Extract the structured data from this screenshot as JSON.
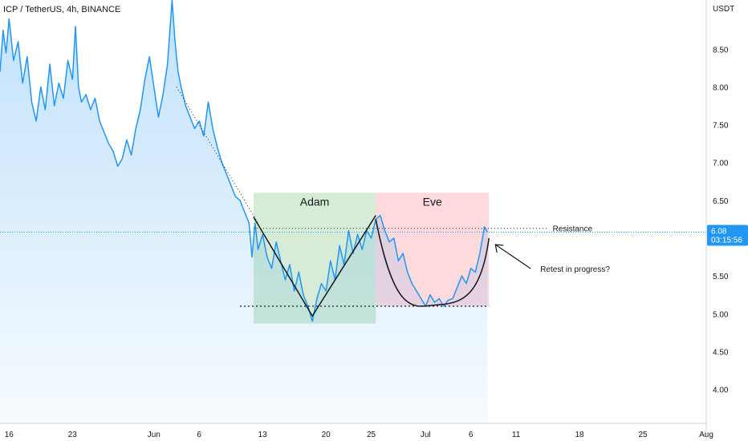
{
  "chart_data": {
    "type": "line",
    "title": "ICP / TetherUS, 4h, BINANCE",
    "y_unit": "USDT",
    "y_range": [
      3.55,
      9.15
    ],
    "y_ticks": [
      4.0,
      4.5,
      5.0,
      5.5,
      6.0,
      6.5,
      7.0,
      7.5,
      8.0,
      8.5
    ],
    "x_range_days": [
      "2021-05-15",
      "2021-08-01"
    ],
    "x_ticks": [
      {
        "date": "2021-05-16",
        "label": "16"
      },
      {
        "date": "2021-05-23",
        "label": "23"
      },
      {
        "date": "2021-06-01",
        "label": "Jun"
      },
      {
        "date": "2021-06-06",
        "label": "6"
      },
      {
        "date": "2021-06-13",
        "label": "13"
      },
      {
        "date": "2021-06-20",
        "label": "20"
      },
      {
        "date": "2021-06-25",
        "label": "25"
      },
      {
        "date": "2021-07-01",
        "label": "Jul"
      },
      {
        "date": "2021-07-06",
        "label": "6"
      },
      {
        "date": "2021-07-11",
        "label": "11"
      },
      {
        "date": "2021-07-18",
        "label": "18"
      },
      {
        "date": "2021-07-25",
        "label": "25"
      },
      {
        "date": "2021-08-01",
        "label": "Aug"
      }
    ],
    "series": [
      {
        "color": "#2196f3",
        "points": [
          [
            "2021-05-15T00:00",
            8.2
          ],
          [
            "2021-05-15T08:00",
            8.75
          ],
          [
            "2021-05-15T16:00",
            8.45
          ],
          [
            "2021-05-16T00:00",
            8.9
          ],
          [
            "2021-05-16T12:00",
            8.35
          ],
          [
            "2021-05-17T00:00",
            8.6
          ],
          [
            "2021-05-17T12:00",
            8.05
          ],
          [
            "2021-05-18T00:00",
            8.4
          ],
          [
            "2021-05-18T12:00",
            7.8
          ],
          [
            "2021-05-19T00:00",
            7.55
          ],
          [
            "2021-05-19T12:00",
            8.0
          ],
          [
            "2021-05-20T00:00",
            7.7
          ],
          [
            "2021-05-20T12:00",
            8.3
          ],
          [
            "2021-05-21T00:00",
            7.75
          ],
          [
            "2021-05-21T12:00",
            8.05
          ],
          [
            "2021-05-22T00:00",
            7.85
          ],
          [
            "2021-05-22T12:00",
            8.35
          ],
          [
            "2021-05-23T00:00",
            8.1
          ],
          [
            "2021-05-23T08:00",
            8.8
          ],
          [
            "2021-05-23T16:00",
            8.0
          ],
          [
            "2021-05-24T00:00",
            7.8
          ],
          [
            "2021-05-24T12:00",
            7.9
          ],
          [
            "2021-05-25T00:00",
            7.7
          ],
          [
            "2021-05-25T12:00",
            7.85
          ],
          [
            "2021-05-26T00:00",
            7.55
          ],
          [
            "2021-05-26T12:00",
            7.4
          ],
          [
            "2021-05-27T00:00",
            7.25
          ],
          [
            "2021-05-27T12:00",
            7.15
          ],
          [
            "2021-05-28T00:00",
            6.95
          ],
          [
            "2021-05-28T12:00",
            7.05
          ],
          [
            "2021-05-29T00:00",
            7.3
          ],
          [
            "2021-05-29T12:00",
            7.1
          ],
          [
            "2021-05-30T00:00",
            7.45
          ],
          [
            "2021-05-30T12:00",
            7.7
          ],
          [
            "2021-05-31T00:00",
            8.1
          ],
          [
            "2021-05-31T12:00",
            8.4
          ],
          [
            "2021-06-01T00:00",
            8.0
          ],
          [
            "2021-06-01T12:00",
            7.6
          ],
          [
            "2021-06-02T00:00",
            7.9
          ],
          [
            "2021-06-02T12:00",
            8.3
          ],
          [
            "2021-06-03T00:00",
            9.15
          ],
          [
            "2021-06-03T08:00",
            8.6
          ],
          [
            "2021-06-03T16:00",
            8.2
          ],
          [
            "2021-06-04T00:00",
            8.0
          ],
          [
            "2021-06-04T12:00",
            7.75
          ],
          [
            "2021-06-05T00:00",
            7.6
          ],
          [
            "2021-06-05T12:00",
            7.45
          ],
          [
            "2021-06-06T00:00",
            7.55
          ],
          [
            "2021-06-06T12:00",
            7.35
          ],
          [
            "2021-06-07T00:00",
            7.8
          ],
          [
            "2021-06-07T12:00",
            7.45
          ],
          [
            "2021-06-08T00:00",
            7.2
          ],
          [
            "2021-06-08T12:00",
            7.0
          ],
          [
            "2021-06-09T00:00",
            6.85
          ],
          [
            "2021-06-09T12:00",
            6.7
          ],
          [
            "2021-06-10T00:00",
            6.55
          ],
          [
            "2021-06-10T12:00",
            6.5
          ],
          [
            "2021-06-11T00:00",
            6.35
          ],
          [
            "2021-06-11T12:00",
            6.2
          ],
          [
            "2021-06-11T20:00",
            5.75
          ],
          [
            "2021-06-12T04:00",
            6.2
          ],
          [
            "2021-06-12T12:00",
            5.85
          ],
          [
            "2021-06-13T00:00",
            6.05
          ],
          [
            "2021-06-13T12:00",
            5.75
          ],
          [
            "2021-06-14T00:00",
            5.6
          ],
          [
            "2021-06-14T12:00",
            5.95
          ],
          [
            "2021-06-15T00:00",
            5.7
          ],
          [
            "2021-06-15T12:00",
            5.45
          ],
          [
            "2021-06-16T00:00",
            5.65
          ],
          [
            "2021-06-16T12:00",
            5.3
          ],
          [
            "2021-06-17T00:00",
            5.55
          ],
          [
            "2021-06-17T12:00",
            5.25
          ],
          [
            "2021-06-18T00:00",
            5.1
          ],
          [
            "2021-06-18T12:00",
            4.9
          ],
          [
            "2021-06-19T00:00",
            5.2
          ],
          [
            "2021-06-19T12:00",
            5.4
          ],
          [
            "2021-06-20T00:00",
            5.3
          ],
          [
            "2021-06-20T12:00",
            5.7
          ],
          [
            "2021-06-21T00:00",
            5.45
          ],
          [
            "2021-06-21T12:00",
            5.9
          ],
          [
            "2021-06-22T00:00",
            5.65
          ],
          [
            "2021-06-22T12:00",
            6.1
          ],
          [
            "2021-06-23T00:00",
            5.8
          ],
          [
            "2021-06-23T12:00",
            6.05
          ],
          [
            "2021-06-24T00:00",
            5.85
          ],
          [
            "2021-06-24T12:00",
            6.1
          ],
          [
            "2021-06-25T00:00",
            6.0
          ],
          [
            "2021-06-25T12:00",
            6.25
          ],
          [
            "2021-06-26T00:00",
            6.3
          ],
          [
            "2021-06-26T12:00",
            6.1
          ],
          [
            "2021-06-27T00:00",
            5.95
          ],
          [
            "2021-06-27T12:00",
            6.0
          ],
          [
            "2021-06-28T00:00",
            5.7
          ],
          [
            "2021-06-28T12:00",
            5.8
          ],
          [
            "2021-06-29T00:00",
            5.55
          ],
          [
            "2021-06-29T12:00",
            5.4
          ],
          [
            "2021-06-30T00:00",
            5.3
          ],
          [
            "2021-06-30T12:00",
            5.2
          ],
          [
            "2021-07-01T00:00",
            5.1
          ],
          [
            "2021-07-01T12:00",
            5.25
          ],
          [
            "2021-07-02T00:00",
            5.15
          ],
          [
            "2021-07-02T12:00",
            5.2
          ],
          [
            "2021-07-03T00:00",
            5.1
          ],
          [
            "2021-07-03T12:00",
            5.18
          ],
          [
            "2021-07-04T00:00",
            5.2
          ],
          [
            "2021-07-04T12:00",
            5.35
          ],
          [
            "2021-07-05T00:00",
            5.5
          ],
          [
            "2021-07-05T12:00",
            5.4
          ],
          [
            "2021-07-06T00:00",
            5.6
          ],
          [
            "2021-07-06T12:00",
            5.55
          ],
          [
            "2021-07-07T00:00",
            5.8
          ],
          [
            "2021-07-07T12:00",
            6.15
          ],
          [
            "2021-07-07T20:00",
            6.08
          ]
        ]
      }
    ],
    "last_price": {
      "value": 6.08,
      "label": "6.08",
      "countdown": "03:15:56"
    },
    "annotations": {
      "zones": [
        {
          "label": "Adam",
          "from": "2021-06-12T00:00",
          "to": "2021-06-25T12:00",
          "y_top": 6.6,
          "y_bottom": 4.87,
          "color": "#c8e6c9"
        },
        {
          "label": "Eve",
          "from": "2021-06-25T12:00",
          "to": "2021-07-08T00:00",
          "y_top": 6.6,
          "y_bottom": 5.1,
          "color": "#ffcdd2"
        }
      ],
      "resistance": {
        "label": "Resistance",
        "value": 6.13,
        "from": "2021-06-12T00:00",
        "to": "2021-07-14T12:00"
      },
      "support": {
        "value": 5.1,
        "from": "2021-06-10T12:00",
        "to": "2021-07-08T00:00"
      },
      "trendline": {
        "from": [
          "2021-06-03T12:00",
          8.0
        ],
        "to": [
          "2021-06-12T12:00",
          6.2
        ]
      },
      "adam_v": [
        [
          "2021-06-12T00:00",
          6.28
        ],
        [
          "2021-06-18T12:00",
          4.97
        ],
        [
          "2021-06-25T12:00",
          6.3
        ]
      ],
      "eve_curve": [
        [
          "2021-06-25T12:00",
          6.25
        ],
        [
          "2021-07-02T12:00",
          5.12
        ],
        [
          "2021-07-08T00:00",
          6.0
        ]
      ],
      "callout": {
        "label": "Retest in progress?",
        "at": [
          "2021-07-08T00:00",
          6.0
        ]
      }
    }
  }
}
